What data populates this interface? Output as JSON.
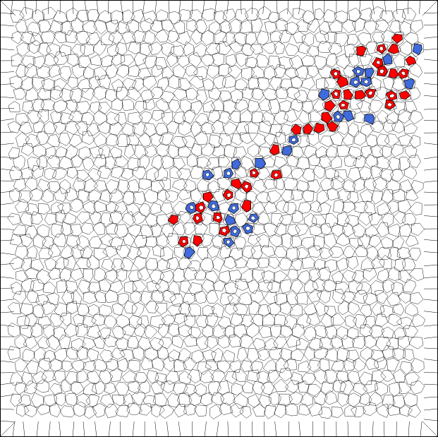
{
  "figure": {
    "kind": "voronoi-mesh-with-highlighted-cluster",
    "background_color": "#ffffff",
    "edge_color": "#000000",
    "highlight_colors": {
      "red": "#ff0000",
      "blue": "#3f6bdc"
    },
    "cluster_direction": "diagonal-bottom-left-to-top-right"
  }
}
